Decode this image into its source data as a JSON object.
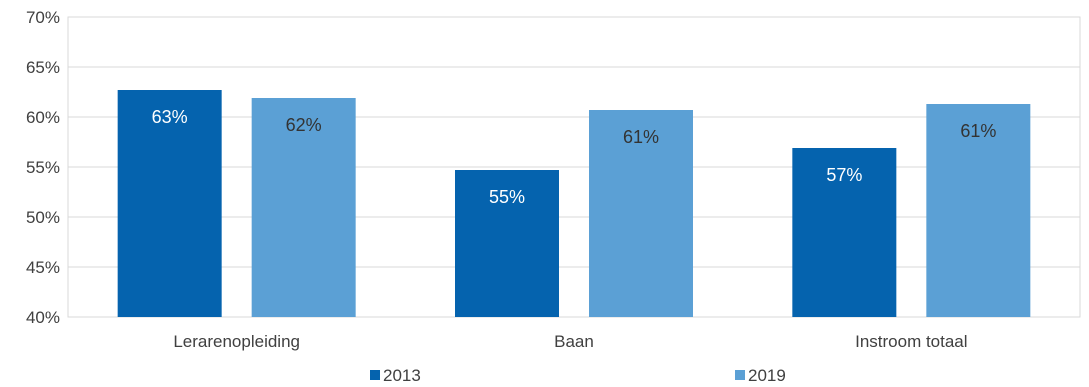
{
  "chart_data": {
    "type": "bar",
    "categories": [
      "Lerarenopleiding",
      "Baan",
      "Instroom totaal"
    ],
    "series": [
      {
        "name": "2013",
        "values": [
          62.7,
          54.7,
          56.9
        ],
        "labels": [
          "63%",
          "55%",
          "57%"
        ]
      },
      {
        "name": "2019",
        "values": [
          61.9,
          60.7,
          61.3
        ],
        "labels": [
          "62%",
          "61%",
          "61%"
        ]
      }
    ],
    "ylim": [
      40,
      70
    ],
    "yticks": [
      {
        "value": 40,
        "label": "40%"
      },
      {
        "value": 45,
        "label": "45%"
      },
      {
        "value": 50,
        "label": "50%"
      },
      {
        "value": 55,
        "label": "55%"
      },
      {
        "value": 60,
        "label": "60%"
      },
      {
        "value": 65,
        "label": "65%"
      },
      {
        "value": 70,
        "label": "70%"
      }
    ],
    "grid": true,
    "legend_position": "bottom",
    "colors": {
      "series": [
        "#0563AE",
        "#5BA0D5"
      ],
      "grid": "#D9D9D9",
      "axis_text": "#404040",
      "label_on_dark": "#FFFFFF",
      "label_on_light": "#333333"
    }
  }
}
